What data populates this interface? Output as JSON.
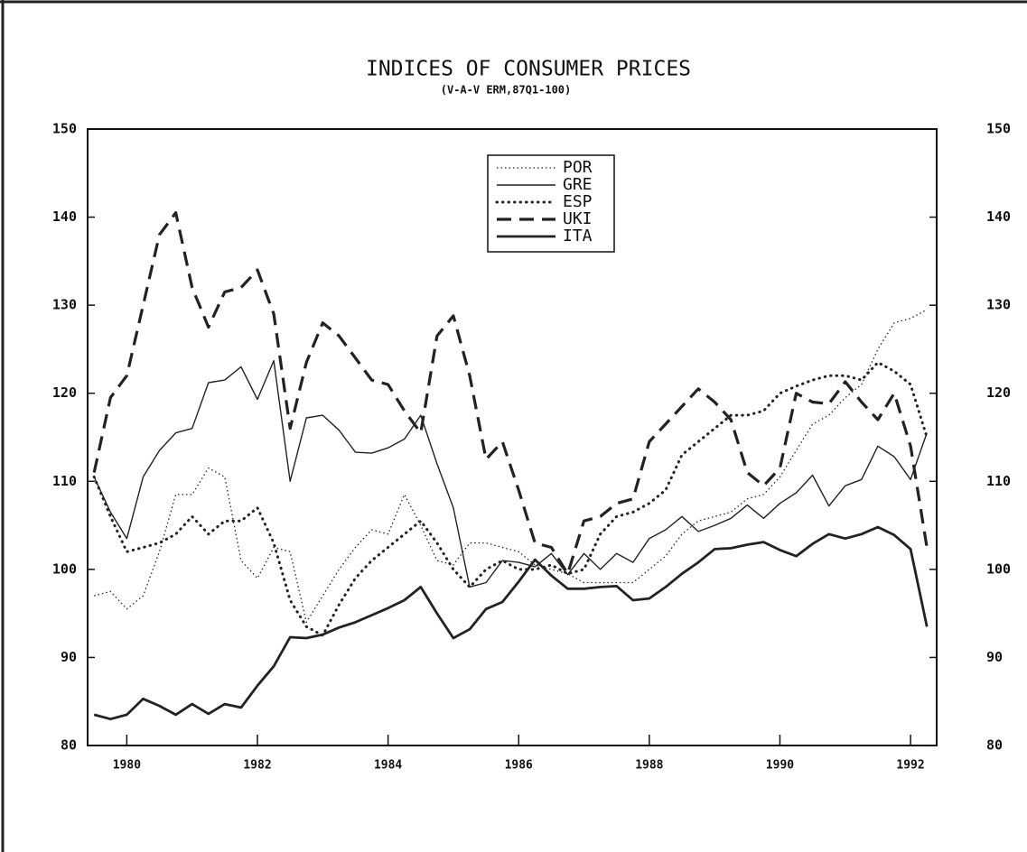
{
  "chart_data": {
    "type": "line",
    "title": "INDICES OF CONSUMER PRICES",
    "subtitle": "(V-A-V ERM,87Q1-100)",
    "x": [
      1979.5,
      1979.75,
      1980,
      1980.25,
      1980.5,
      1980.75,
      1981,
      1981.25,
      1981.5,
      1981.75,
      1982,
      1982.25,
      1982.5,
      1982.75,
      1983,
      1983.25,
      1983.5,
      1983.75,
      1984,
      1984.25,
      1984.5,
      1984.75,
      1985,
      1985.25,
      1985.5,
      1985.75,
      1986,
      1986.25,
      1986.5,
      1986.75,
      1987,
      1987.25,
      1987.5,
      1987.75,
      1988,
      1988.25,
      1988.5,
      1988.75,
      1989,
      1989.25,
      1989.5,
      1989.75,
      1990,
      1990.25,
      1990.5,
      1990.75,
      1991,
      1991.25,
      1991.5,
      1991.75,
      1992,
      1992.25
    ],
    "series": [
      {
        "name": "POR",
        "color": "#222",
        "dash": "fine-dotted",
        "values": [
          97,
          97.5,
          95.5,
          97,
          102,
          108.5,
          108.5,
          111.5,
          110.5,
          101,
          99,
          102.5,
          102,
          94,
          97,
          100,
          102.5,
          104.5,
          104,
          108.5,
          105,
          101,
          100.5,
          103,
          103,
          102.5,
          102,
          100.5,
          100,
          99.5,
          98.5,
          98.5,
          98.5,
          98.5,
          100,
          101.5,
          104,
          105.5,
          106,
          106.5,
          108,
          108.5,
          110.5,
          113.5,
          116.5,
          117.5,
          119.5,
          121,
          125,
          128,
          128.5,
          129.5
        ]
      },
      {
        "name": "GRE",
        "color": "#222",
        "dash": "thin-solid",
        "values": [
          110.5,
          106.5,
          103.5,
          110.5,
          113.5,
          115.5,
          116,
          121.2,
          121.5,
          123,
          119.3,
          123.7,
          110,
          117.2,
          117.5,
          115.8,
          113.3,
          113.2,
          113.8,
          114.8,
          117.5,
          112,
          107,
          98,
          98.5,
          101,
          100.8,
          100.3,
          101.8,
          99.4,
          101.8,
          100,
          101.8,
          100.8,
          103.5,
          104.5,
          106,
          104.3,
          105,
          105.8,
          107.3,
          105.8,
          107.5,
          108.7,
          110.7,
          107.2,
          109.5,
          110.2,
          114,
          112.8,
          110.2,
          115.5
        ]
      },
      {
        "name": "ESP",
        "color": "#222",
        "dash": "dotted",
        "values": [
          110.5,
          106,
          102,
          102.5,
          103,
          104,
          106,
          104,
          105.5,
          105.5,
          107,
          103,
          96.5,
          93.5,
          92.5,
          96,
          99,
          101,
          102.5,
          104,
          105.5,
          103,
          100,
          98,
          100,
          101,
          100,
          100,
          100.5,
          99.5,
          100,
          104,
          106,
          106.5,
          107.5,
          109,
          113,
          114.5,
          116,
          117.5,
          117.5,
          118,
          120,
          120.8,
          121.5,
          122,
          122,
          121.5,
          123.5,
          122.5,
          121,
          115
        ]
      },
      {
        "name": "UKI",
        "color": "#222",
        "dash": "dashed",
        "values": [
          111,
          119.5,
          122,
          130,
          138,
          140.5,
          132,
          127.5,
          131.5,
          132,
          134,
          129,
          116,
          123.5,
          128,
          126.5,
          124,
          121.5,
          121,
          118,
          115.5,
          126.5,
          128.8,
          122,
          112.5,
          114.5,
          109,
          103,
          102.5,
          99.5,
          105.5,
          106,
          107.5,
          108,
          114.5,
          116.5,
          118.5,
          120.5,
          119,
          117,
          111,
          109.5,
          111.5,
          120,
          119,
          118.8,
          121.3,
          119,
          117,
          120,
          114,
          102.5
        ]
      },
      {
        "name": "ITA",
        "color": "#222",
        "dash": "thick-solid",
        "values": [
          83.5,
          83,
          83.5,
          85.3,
          84.5,
          83.5,
          84.7,
          83.6,
          84.7,
          84.3,
          86.8,
          89,
          92.3,
          92.2,
          92.6,
          93.4,
          94,
          94.8,
          95.6,
          96.5,
          98,
          95,
          92.2,
          93.2,
          95.5,
          96.3,
          98.6,
          101.1,
          99.3,
          97.8,
          97.8,
          98,
          98.1,
          96.5,
          96.7,
          98,
          99.5,
          100.8,
          102.3,
          102.4,
          102.8,
          103.1,
          102.2,
          101.5,
          102.9,
          104,
          103.5,
          104,
          104.8,
          103.9,
          102.3,
          93.5
        ]
      }
    ],
    "xlim": [
      1979.4,
      1992.4
    ],
    "xticks": [
      1980,
      1982,
      1984,
      1986,
      1988,
      1990,
      1992
    ],
    "ylim": [
      80,
      150
    ],
    "yticks": [
      80,
      90,
      100,
      110,
      120,
      130,
      140,
      150
    ],
    "y2lim": [
      80,
      150
    ],
    "y2ticks": [
      80,
      90,
      100,
      110,
      120,
      130,
      140,
      150
    ],
    "legend": "top-center"
  }
}
